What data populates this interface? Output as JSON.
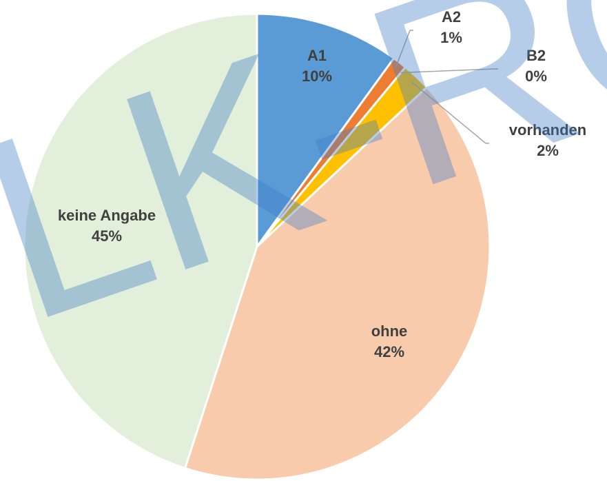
{
  "chart_data": {
    "type": "pie",
    "categories": [
      "A1",
      "A2",
      "B2",
      "vorhanden",
      "ohne",
      "keine Angabe"
    ],
    "values": [
      10,
      1,
      0,
      2,
      42,
      45
    ],
    "value_labels": [
      "10%",
      "1%",
      "0%",
      "2%",
      "42%",
      "45%"
    ],
    "colors": [
      "#5b9bd5",
      "#ed7d31",
      "#a5a5a5",
      "#ffc000",
      "#f8cbad",
      "#e2efda"
    ],
    "watermark": "LK-RO"
  }
}
